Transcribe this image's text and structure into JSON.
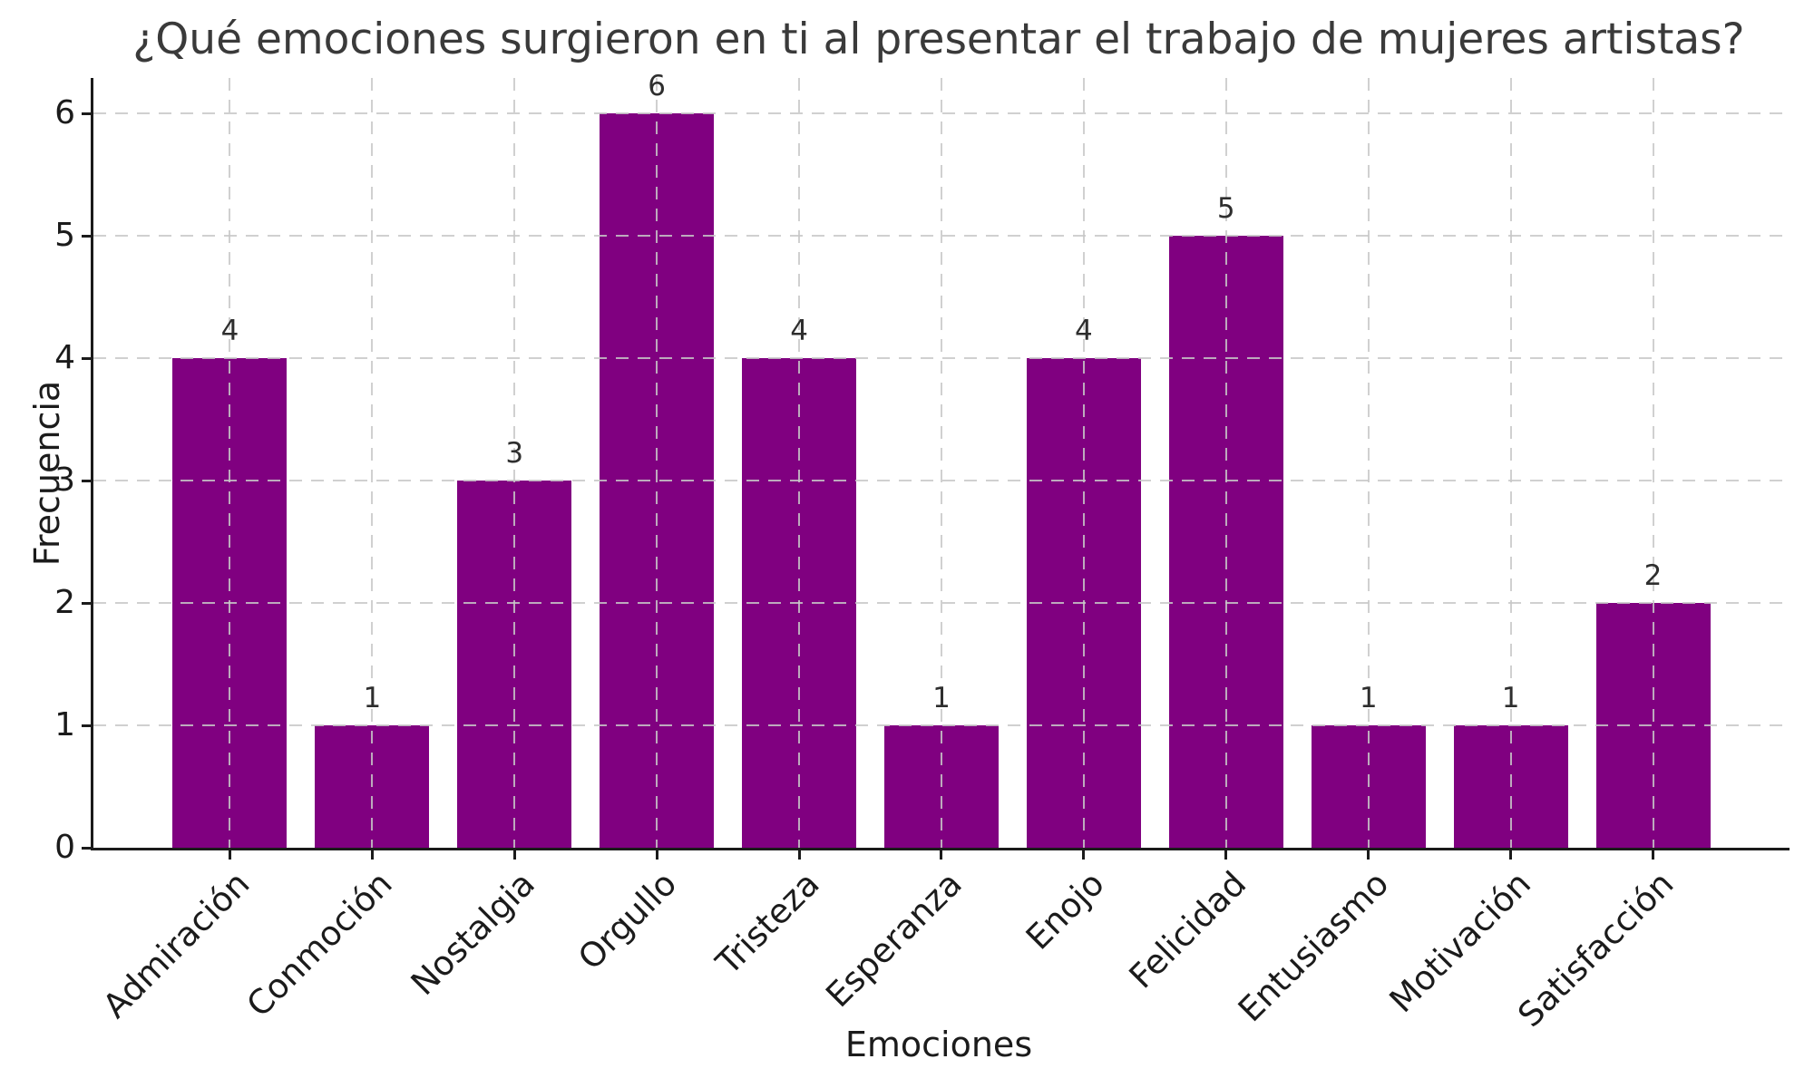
{
  "chart_data": {
    "type": "bar",
    "title": "¿Qué emociones surgieron en ti al presentar el trabajo de mujeres artistas?",
    "xlabel": "Emociones",
    "ylabel": "Frecuencia",
    "categories": [
      "Admiración",
      "Conmoción",
      "Nostalgia",
      "Orgullo",
      "Tristeza",
      "Esperanza",
      "Enojo",
      "Felicidad",
      "Entusiasmo",
      "Motivación",
      "Satisfacción"
    ],
    "values": [
      4,
      1,
      3,
      6,
      4,
      1,
      4,
      5,
      1,
      1,
      2
    ],
    "value_labels": [
      "4",
      "1",
      "3",
      "6",
      "4",
      "1",
      "4",
      "5",
      "1",
      "1",
      "2"
    ],
    "yticks": [
      0,
      1,
      2,
      3,
      4,
      5,
      6
    ],
    "ylim": [
      0,
      6.3
    ],
    "grid": true,
    "grid_style": "dashed",
    "x_tick_rotation": 45,
    "legend": false,
    "colors": {
      "bar": "#800080",
      "grid": "#c8c8c8",
      "axis": "#1b1b1b",
      "title_text": "#3a3a3a",
      "tick_text": "#1b1b1b",
      "value_text": "#2e2e2e",
      "background": "#ffffff"
    }
  }
}
